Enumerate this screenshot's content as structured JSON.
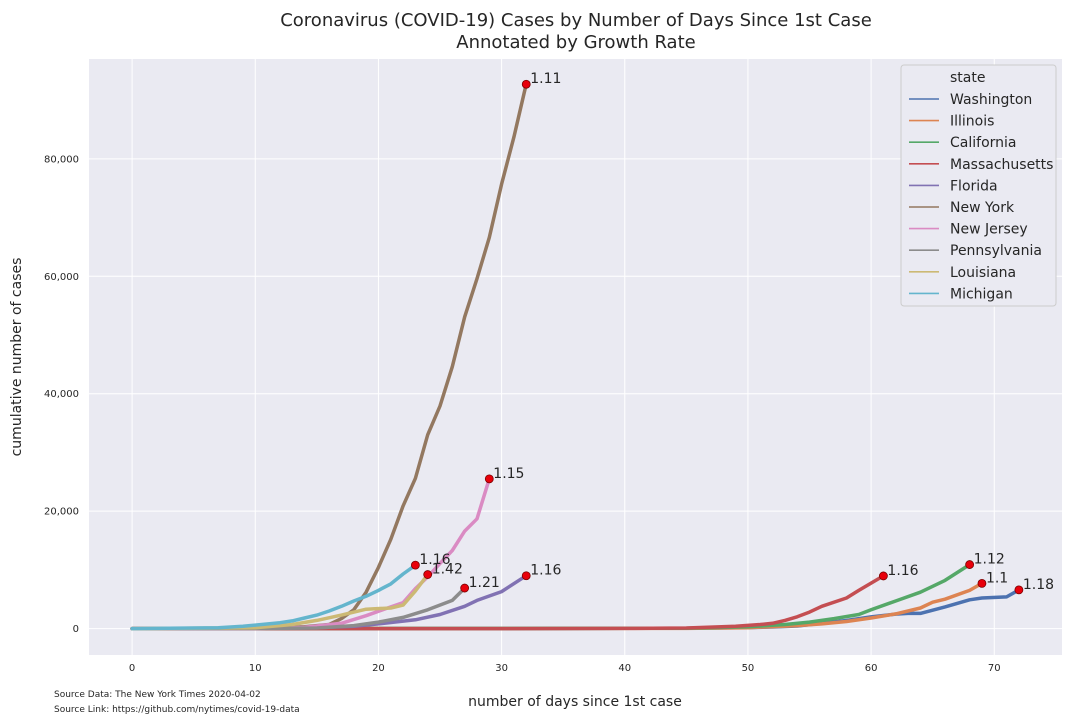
{
  "chart_data": {
    "type": "line",
    "title": "Coronavirus (COVID-19) Cases by Number of Days Since 1st Case",
    "subtitle": "Annotated by Growth Rate",
    "xlabel": "number of days since 1st case",
    "ylabel": "cumulative number of cases",
    "xlim": [
      -3.5,
      75.5
    ],
    "ylim": [
      -4500,
      97000
    ],
    "x_ticks": [
      0,
      10,
      20,
      30,
      40,
      50,
      60,
      70
    ],
    "x_tick_labels": [
      "0",
      "10",
      "20",
      "30",
      "40",
      "50",
      "60",
      "70"
    ],
    "y_ticks": [
      0,
      20000,
      40000,
      60000,
      80000
    ],
    "y_tick_labels": [
      "0",
      "20,000",
      "40,000",
      "60,000",
      "80,000"
    ],
    "grid": true,
    "legend": {
      "title": "state",
      "placement": "top-right"
    },
    "series": [
      {
        "name": "Washington",
        "color": "#4c72b0",
        "points": [
          [
            0,
            1
          ],
          [
            30,
            12
          ],
          [
            40,
            40
          ],
          [
            45,
            70
          ],
          [
            50,
            162
          ],
          [
            52,
            267
          ],
          [
            54,
            442
          ],
          [
            56,
            904
          ],
          [
            58,
            1376
          ],
          [
            60,
            1996
          ],
          [
            62,
            2469
          ],
          [
            63,
            2585
          ],
          [
            64,
            2580
          ],
          [
            66,
            3700
          ],
          [
            68,
            4896
          ],
          [
            69,
            5200
          ],
          [
            71,
            5400
          ],
          [
            72,
            6585
          ]
        ],
        "endpoint": [
          72,
          6585
        ],
        "annotation": "1.18"
      },
      {
        "name": "Illinois",
        "color": "#dd8452",
        "points": [
          [
            0,
            1
          ],
          [
            30,
            5
          ],
          [
            45,
            30
          ],
          [
            50,
            150
          ],
          [
            54,
            500
          ],
          [
            56,
            800
          ],
          [
            58,
            1200
          ],
          [
            60,
            1800
          ],
          [
            62,
            2500
          ],
          [
            64,
            3500
          ],
          [
            65,
            4500
          ],
          [
            66,
            5000
          ],
          [
            68,
            6500
          ],
          [
            69,
            7695
          ]
        ],
        "endpoint": [
          69,
          7695
        ],
        "annotation": "1.1"
      },
      {
        "name": "California",
        "color": "#55a868",
        "points": [
          [
            0,
            1
          ],
          [
            30,
            8
          ],
          [
            45,
            60
          ],
          [
            50,
            300
          ],
          [
            53,
            700
          ],
          [
            55,
            1100
          ],
          [
            57,
            1700
          ],
          [
            59,
            2400
          ],
          [
            60,
            3200
          ],
          [
            62,
            4700
          ],
          [
            64,
            6200
          ],
          [
            66,
            8200
          ],
          [
            68,
            10900
          ]
        ],
        "endpoint": [
          68,
          10900
        ],
        "annotation": "1.12"
      },
      {
        "name": "Massachusetts",
        "color": "#c44e52",
        "points": [
          [
            0,
            1
          ],
          [
            30,
            2
          ],
          [
            40,
            30
          ],
          [
            45,
            100
          ],
          [
            49,
            400
          ],
          [
            51,
            700
          ],
          [
            52,
            900
          ],
          [
            53,
            1400
          ],
          [
            54,
            2000
          ],
          [
            55,
            2800
          ],
          [
            56,
            3800
          ],
          [
            58,
            5200
          ],
          [
            59,
            6500
          ],
          [
            61,
            8966
          ]
        ],
        "endpoint": [
          61,
          8966
        ],
        "annotation": "1.16"
      },
      {
        "name": "Florida",
        "color": "#8172b3",
        "points": [
          [
            0,
            1
          ],
          [
            5,
            10
          ],
          [
            10,
            40
          ],
          [
            15,
            150
          ],
          [
            18,
            400
          ],
          [
            20,
            800
          ],
          [
            23,
            1500
          ],
          [
            25,
            2400
          ],
          [
            27,
            3800
          ],
          [
            28,
            4800
          ],
          [
            30,
            6300
          ],
          [
            32,
            9000
          ]
        ],
        "endpoint": [
          32,
          9000
        ],
        "annotation": "1.16"
      },
      {
        "name": "New York",
        "color": "#937860",
        "points": [
          [
            0,
            1
          ],
          [
            5,
            10
          ],
          [
            10,
            50
          ],
          [
            14,
            300
          ],
          [
            16,
            700
          ],
          [
            17,
            1700
          ],
          [
            18,
            3200
          ],
          [
            19,
            6200
          ],
          [
            20,
            10400
          ],
          [
            21,
            15200
          ],
          [
            22,
            20900
          ],
          [
            23,
            25600
          ],
          [
            24,
            33000
          ],
          [
            25,
            37900
          ],
          [
            26,
            44600
          ],
          [
            27,
            53100
          ],
          [
            28,
            59600
          ],
          [
            29,
            66600
          ],
          [
            30,
            75700
          ],
          [
            31,
            83700
          ],
          [
            32,
            92700
          ]
        ],
        "endpoint": [
          32,
          92700
        ],
        "annotation": "1.11"
      },
      {
        "name": "New Jersey",
        "color": "#da8bc3",
        "points": [
          [
            0,
            1
          ],
          [
            10,
            20
          ],
          [
            14,
            200
          ],
          [
            17,
            900
          ],
          [
            19,
            2200
          ],
          [
            21,
            3700
          ],
          [
            22,
            4400
          ],
          [
            23,
            6800
          ],
          [
            24,
            8800
          ],
          [
            25,
            11100
          ],
          [
            26,
            13300
          ],
          [
            27,
            16600
          ],
          [
            28,
            18700
          ],
          [
            29,
            25500
          ]
        ],
        "endpoint": [
          29,
          25500
        ],
        "annotation": "1.15"
      },
      {
        "name": "Pennsylvania",
        "color": "#8c8c8c",
        "points": [
          [
            0,
            1
          ],
          [
            10,
            20
          ],
          [
            15,
            100
          ],
          [
            18,
            500
          ],
          [
            20,
            1100
          ],
          [
            22,
            1900
          ],
          [
            24,
            3200
          ],
          [
            26,
            4800
          ],
          [
            27,
            6900
          ]
        ],
        "endpoint": [
          27,
          6900
        ],
        "annotation": "1.21"
      },
      {
        "name": "Louisiana",
        "color": "#ccb974",
        "points": [
          [
            0,
            1
          ],
          [
            10,
            150
          ],
          [
            13,
            700
          ],
          [
            15,
            1400
          ],
          [
            17,
            2300
          ],
          [
            19,
            3300
          ],
          [
            21,
            3500
          ],
          [
            22,
            4000
          ],
          [
            23,
            6400
          ],
          [
            24,
            9200
          ]
        ],
        "endpoint": [
          24,
          9200
        ],
        "annotation": "1.42"
      },
      {
        "name": "Michigan",
        "color": "#64b5cd",
        "points": [
          [
            0,
            1
          ],
          [
            7,
            150
          ],
          [
            9,
            400
          ],
          [
            10,
            600
          ],
          [
            12,
            1000
          ],
          [
            13,
            1300
          ],
          [
            14,
            1800
          ],
          [
            15,
            2300
          ],
          [
            16,
            3000
          ],
          [
            17,
            3800
          ],
          [
            18,
            4700
          ],
          [
            19,
            5500
          ],
          [
            20,
            6500
          ],
          [
            21,
            7600
          ],
          [
            22,
            9300
          ],
          [
            23,
            10800
          ]
        ],
        "endpoint": [
          23,
          10800
        ],
        "annotation": "1.16"
      }
    ],
    "source_note": {
      "data": "Source Data: The New York Times 2020-04-02",
      "link": "Source Link: https://github.com/nytimes/covid-19-data"
    }
  }
}
